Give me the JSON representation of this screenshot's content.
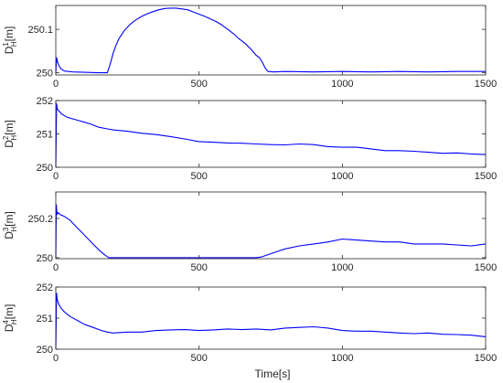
{
  "figure": {
    "xlabel": "Time[s]",
    "line_color": "#0000ff"
  },
  "chart_data": [
    {
      "type": "line",
      "ylabel_main": "D",
      "ylabel_sub": "H",
      "ylabel_sup": "1",
      "ylabel_unit": "[m]",
      "xlim": [
        0,
        1500
      ],
      "ylim": [
        249.995,
        250.155
      ],
      "xticks": [
        0,
        500,
        1000,
        1500
      ],
      "xtick_labels": [
        "0",
        "500",
        "1000",
        "1500"
      ],
      "yticks": [
        250,
        250.1
      ],
      "ytick_labels": [
        "250",
        "250.1"
      ],
      "series": [
        {
          "x": [
            0,
            3,
            6,
            10,
            15,
            20,
            30,
            60,
            100,
            150,
            180,
            190,
            200,
            210,
            220,
            240,
            260,
            280,
            300,
            320,
            340,
            360,
            380,
            400,
            420,
            440,
            460,
            480,
            500,
            520,
            540,
            560,
            580,
            600,
            620,
            640,
            660,
            680,
            700,
            710,
            720,
            730,
            740,
            760,
            800,
            900,
            1000,
            1100,
            1200,
            1300,
            1400,
            1500
          ],
          "y": [
            250.0,
            250.035,
            250.025,
            250.018,
            250.012,
            250.008,
            250.004,
            250.002,
            250.001,
            250.0,
            250.0,
            250.02,
            250.045,
            250.063,
            250.078,
            250.098,
            250.112,
            250.122,
            250.13,
            250.136,
            250.141,
            250.145,
            250.148,
            250.149,
            250.149,
            250.147,
            250.145,
            250.14,
            250.135,
            250.13,
            250.124,
            250.118,
            250.11,
            250.1,
            250.09,
            250.078,
            250.068,
            250.055,
            250.04,
            250.035,
            250.025,
            250.012,
            250.003,
            250.002,
            250.003,
            250.002,
            250.003,
            250.002,
            250.003,
            250.002,
            250.003,
            250.003
          ]
        }
      ]
    },
    {
      "type": "line",
      "ylabel_main": "D",
      "ylabel_sub": "H",
      "ylabel_sup": "2",
      "ylabel_unit": "[m]",
      "xlim": [
        0,
        1500
      ],
      "ylim": [
        250,
        252
      ],
      "xticks": [
        0,
        500,
        1000,
        1500
      ],
      "xtick_labels": [
        "0",
        "500",
        "1000",
        "1500"
      ],
      "yticks": [
        250,
        251,
        252
      ],
      "ytick_labels": [
        "250",
        "251",
        "252"
      ],
      "series": [
        {
          "x": [
            0,
            3,
            5,
            10,
            20,
            40,
            60,
            80,
            100,
            120,
            150,
            180,
            200,
            250,
            300,
            350,
            400,
            450,
            500,
            550,
            600,
            650,
            700,
            750,
            800,
            850,
            900,
            950,
            1000,
            1050,
            1100,
            1150,
            1200,
            1250,
            1300,
            1350,
            1400,
            1450,
            1500
          ],
          "y": [
            250.0,
            251.9,
            251.75,
            251.7,
            251.6,
            251.5,
            251.45,
            251.4,
            251.35,
            251.3,
            251.2,
            251.15,
            251.12,
            251.08,
            251.02,
            250.98,
            250.92,
            250.85,
            250.77,
            250.75,
            250.73,
            250.72,
            250.7,
            250.68,
            250.67,
            250.7,
            250.68,
            250.62,
            250.6,
            250.6,
            250.55,
            250.5,
            250.5,
            250.48,
            250.45,
            250.42,
            250.43,
            250.4,
            250.38
          ]
        }
      ]
    },
    {
      "type": "line",
      "ylabel_main": "D",
      "ylabel_sub": "H",
      "ylabel_sup": "3",
      "ylabel_unit": "[m]",
      "xlim": [
        0,
        1500
      ],
      "ylim": [
        249.995,
        250.335
      ],
      "xticks": [
        0,
        500,
        1000,
        1500
      ],
      "xtick_labels": [
        "0",
        "500",
        "1000",
        "1500"
      ],
      "yticks": [
        250,
        250.2
      ],
      "ytick_labels": [
        "250",
        "250.2"
      ],
      "series": [
        {
          "x": [
            0,
            2,
            4,
            8,
            15,
            30,
            50,
            70,
            90,
            110,
            130,
            150,
            170,
            185,
            200,
            300,
            400,
            500,
            600,
            700,
            720,
            750,
            780,
            800,
            850,
            900,
            950,
            1000,
            1050,
            1100,
            1150,
            1200,
            1250,
            1300,
            1350,
            1400,
            1450,
            1500
          ],
          "y": [
            250.0,
            250.27,
            250.22,
            250.23,
            250.22,
            250.21,
            250.19,
            250.16,
            250.13,
            250.1,
            250.07,
            250.04,
            250.015,
            250.0,
            250.0,
            250.0,
            250.0,
            250.0,
            250.0,
            250.0,
            250.005,
            250.02,
            250.035,
            250.045,
            250.06,
            250.07,
            250.08,
            250.095,
            250.09,
            250.085,
            250.08,
            250.08,
            250.07,
            250.07,
            250.07,
            250.065,
            250.06,
            250.07
          ]
        }
      ]
    },
    {
      "type": "line",
      "ylabel_main": "D",
      "ylabel_sub": "H",
      "ylabel_sup": "4",
      "ylabel_unit": "[m]",
      "xlim": [
        0,
        1500
      ],
      "ylim": [
        250,
        252
      ],
      "xticks": [
        0,
        500,
        1000,
        1500
      ],
      "xtick_labels": [
        "0",
        "500",
        "1000",
        "1500"
      ],
      "yticks": [
        250,
        251,
        252
      ],
      "ytick_labels": [
        "250",
        "251",
        "252"
      ],
      "series": [
        {
          "x": [
            0,
            3,
            5,
            10,
            20,
            30,
            50,
            80,
            100,
            130,
            160,
            180,
            200,
            250,
            300,
            350,
            400,
            450,
            500,
            550,
            600,
            650,
            700,
            750,
            800,
            850,
            900,
            950,
            1000,
            1050,
            1100,
            1150,
            1200,
            1250,
            1300,
            1350,
            1400,
            1450,
            1500
          ],
          "y": [
            250.0,
            251.8,
            251.6,
            251.45,
            251.3,
            251.2,
            251.05,
            250.9,
            250.8,
            250.7,
            250.6,
            250.55,
            250.52,
            250.55,
            250.55,
            250.6,
            250.62,
            250.63,
            250.6,
            250.62,
            250.65,
            250.63,
            250.65,
            250.62,
            250.68,
            250.7,
            250.72,
            250.68,
            250.6,
            250.58,
            250.58,
            250.55,
            250.52,
            250.5,
            250.52,
            250.48,
            250.47,
            250.45,
            250.4
          ]
        }
      ]
    }
  ]
}
